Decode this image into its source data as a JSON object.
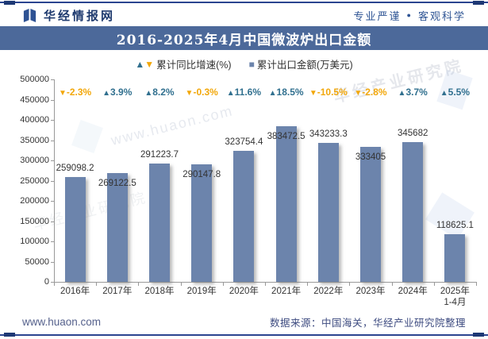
{
  "header": {
    "brand": "华经情报网",
    "slogan": {
      "left": "专业严谨",
      "sep": "●",
      "right": "客观科学"
    }
  },
  "title": "2016-2025年4月中国微波炉出口金额",
  "legend": {
    "growth_label": "累计同比增速(%)",
    "amount_label": "累计出口金额(万美元)"
  },
  "icons": {
    "up_triangle": "▲",
    "down_triangle": "▼",
    "square": "■"
  },
  "footer": {
    "site": "www.huaon.com",
    "source": "数据来源：中国海关，华经产业研究院整理"
  },
  "watermarks": {
    "url": "www.huaon.com",
    "name": "华经产业研究院"
  },
  "colors": {
    "banner": "#4C699A",
    "bar": "#6C84AC",
    "growth_up": "#31708F",
    "growth_down": "#F2A70A",
    "axis": "#999999",
    "frame": "#2B4590"
  },
  "chart_data": {
    "type": "bar",
    "title": "2016-2025年4月中国微波炉出口金额",
    "categories": [
      "2016年",
      "2017年",
      "2018年",
      "2019年",
      "2020年",
      "2021年",
      "2022年",
      "2023年",
      "2024年",
      "2025年\n1-4月"
    ],
    "series": [
      {
        "name": "累计出口金额(万美元)",
        "type": "bar",
        "values": [
          259098.2,
          269122.5,
          291223.7,
          290147.8,
          323754.4,
          383472.5,
          343233.3,
          333405,
          345682,
          118625.1
        ]
      },
      {
        "name": "累计同比增速(%)",
        "type": "point-label",
        "values": [
          -2.3,
          3.9,
          8.2,
          -0.3,
          11.6,
          18.5,
          -10.5,
          -2.8,
          3.7,
          5.5
        ]
      }
    ],
    "ylabel": "",
    "xlabel": "",
    "ylim": [
      0,
      500000
    ],
    "ytick_step": 50000,
    "grid": false,
    "legend_position": "top"
  }
}
